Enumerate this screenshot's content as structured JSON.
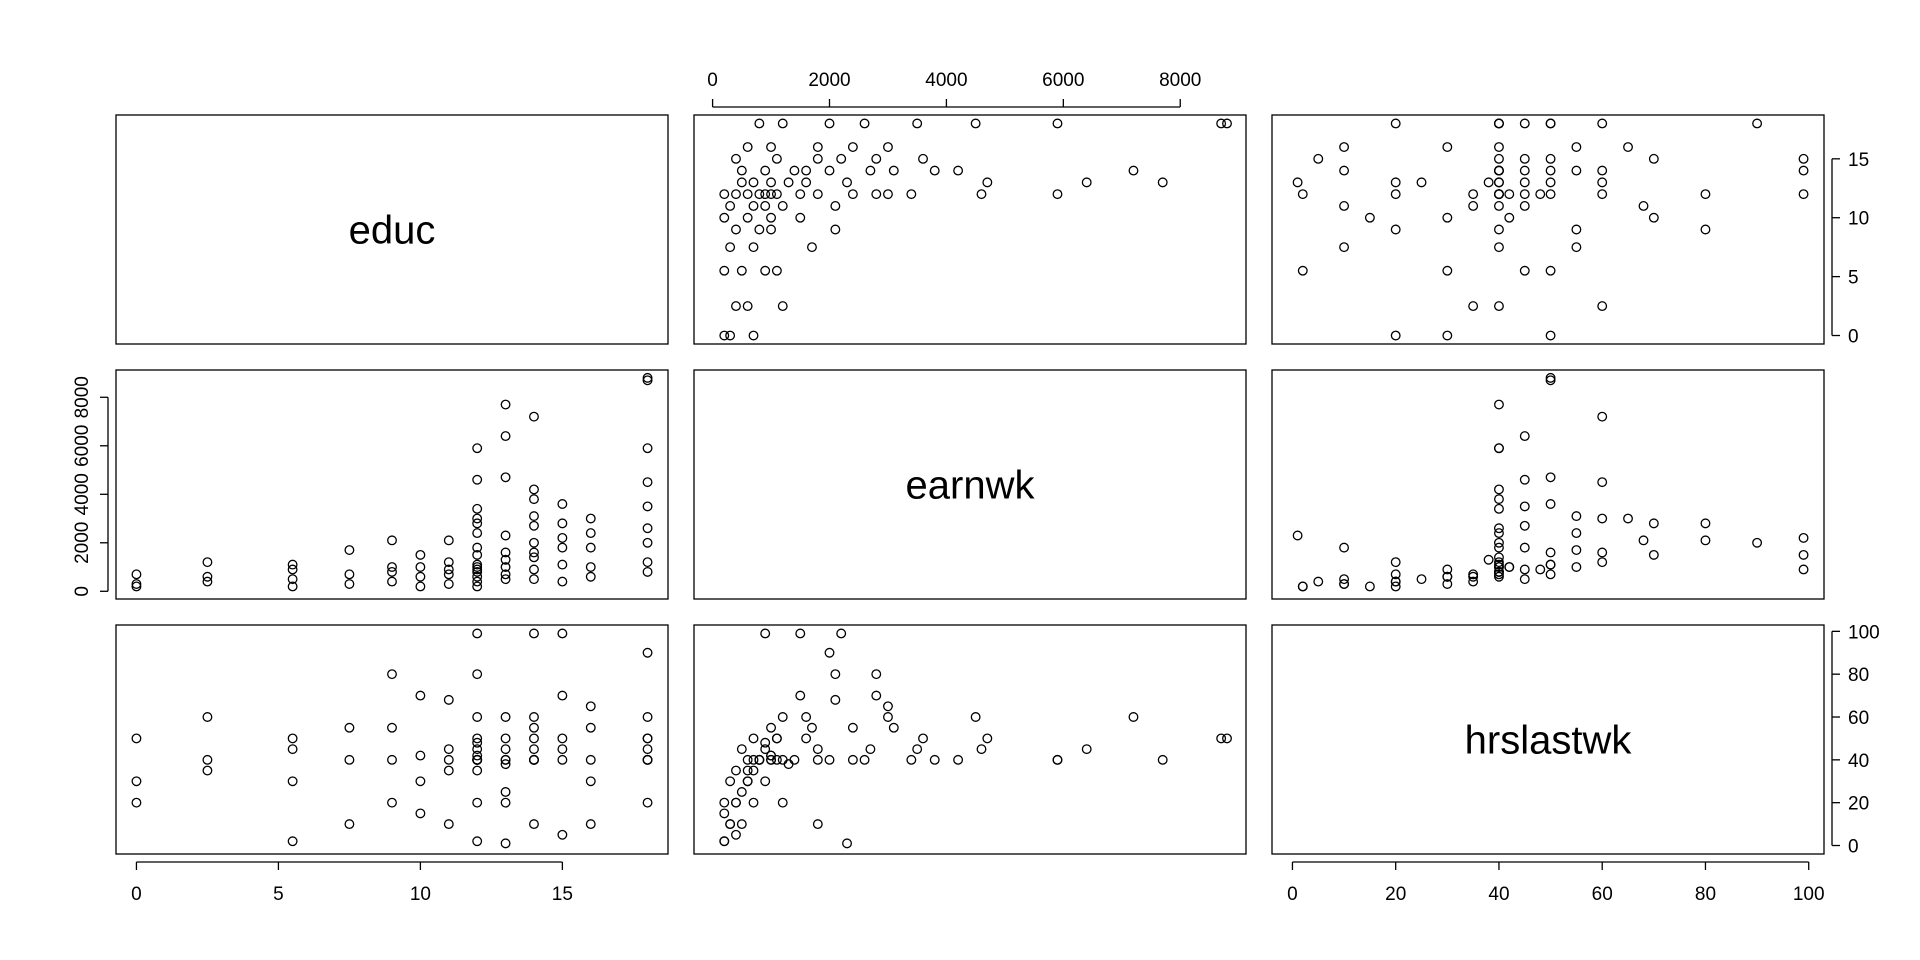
{
  "chart_data": {
    "type": "scatter-matrix",
    "point_color": "#000000",
    "variables": [
      {
        "name": "educ",
        "lim": [
          -0.72,
          18.72
        ],
        "ticks": [
          0,
          5,
          10,
          15
        ],
        "values": [
          0,
          0,
          0,
          2.5,
          2.5,
          2.5,
          5.5,
          5.5,
          5.5,
          5.5,
          7.5,
          7.5,
          7.5,
          9,
          9,
          9,
          10,
          10,
          10,
          11,
          11,
          11,
          11,
          12,
          12,
          12,
          12,
          12,
          12,
          12,
          12,
          12,
          12,
          13,
          13,
          13,
          13,
          13,
          13,
          13,
          14,
          14,
          14,
          14,
          14,
          14,
          14,
          15,
          15,
          15,
          15,
          15,
          16,
          16,
          16,
          16,
          18,
          18,
          18,
          18,
          18,
          18,
          18,
          18,
          12,
          14,
          13,
          12,
          16,
          15,
          14,
          12,
          18,
          13,
          11,
          12,
          14,
          10,
          9,
          12
        ]
      },
      {
        "name": "earnwk",
        "lim": [
          -318,
          9125
        ],
        "ticks": [
          0,
          2000,
          4000,
          6000,
          8000
        ],
        "values": [
          300,
          700,
          200,
          600,
          1200,
          400,
          500,
          900,
          200,
          1100,
          700,
          1700,
          300,
          800,
          2100,
          400,
          600,
          1500,
          200,
          900,
          2100,
          300,
          1200,
          5900,
          800,
          1500,
          3000,
          400,
          4600,
          200,
          1100,
          2400,
          600,
          7700,
          6400,
          1000,
          2300,
          4700,
          700,
          1600,
          7200,
          4200,
          900,
          2700,
          500,
          1400,
          3100,
          3600,
          1100,
          2200,
          400,
          1800,
          3000,
          1000,
          1800,
          600,
          8700,
          8800,
          5900,
          4500,
          2000,
          1200,
          3500,
          800,
          1800,
          2000,
          1300,
          1000,
          2400,
          2800,
          3800,
          3400,
          2600,
          500,
          700,
          900,
          1600,
          1000,
          1000,
          2800
        ]
      },
      {
        "name": "hrslastwk",
        "lim": [
          -3.96,
          102.96
        ],
        "ticks": [
          0,
          20,
          40,
          60,
          80,
          100
        ],
        "values": [
          30,
          50,
          20,
          40,
          60,
          35,
          45,
          30,
          2,
          50,
          40,
          55,
          10,
          40,
          80,
          20,
          30,
          70,
          15,
          45,
          68,
          10,
          40,
          40,
          40,
          99,
          60,
          20,
          45,
          2,
          50,
          40,
          35,
          40,
          45,
          40,
          1,
          50,
          20,
          60,
          60,
          40,
          99,
          45,
          10,
          40,
          55,
          50,
          40,
          99,
          5,
          45,
          65,
          40,
          10,
          30,
          50,
          50,
          40,
          60,
          90,
          20,
          45,
          40,
          40,
          40,
          38,
          42,
          55,
          70,
          40,
          40,
          40,
          25,
          35,
          48,
          50,
          42,
          55,
          80
        ]
      }
    ]
  }
}
